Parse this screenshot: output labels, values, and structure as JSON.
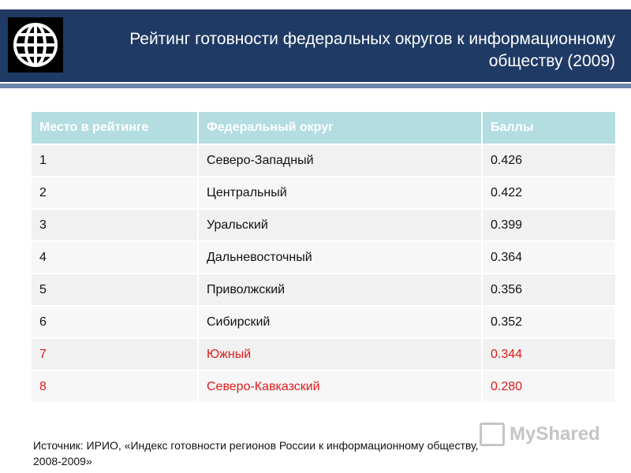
{
  "slide": {
    "title_line1": "Рейтинг готовности федеральных округов к информационному",
    "title_line2": "обществу (2009)",
    "logo_icon": "globe-icon",
    "header_color": "#1f3a64",
    "header_rule_color": "#6e86ad"
  },
  "table": {
    "header_color": "#b3dde0",
    "highlight_color": "#e01a1a",
    "columns": [
      "Место в рейтинге",
      "Федеральный округ",
      "Баллы"
    ],
    "rows": [
      {
        "rank": "1",
        "district": "Северо-Западный",
        "score": "0.426"
      },
      {
        "rank": "2",
        "district": "Центральный",
        "score": "0.422"
      },
      {
        "rank": "3",
        "district": "Уральский",
        "score": "0.399"
      },
      {
        "rank": "4",
        "district": "Дальневосточный",
        "score": "0.364"
      },
      {
        "rank": "5",
        "district": "Приволжский",
        "score": "0.356"
      },
      {
        "rank": "6",
        "district": "Сибирский",
        "score": "0.352"
      },
      {
        "rank": "7",
        "district": "Южный",
        "score": "0.344"
      },
      {
        "rank": "8",
        "district": "Северо-Кавказский",
        "score": "0.280"
      }
    ]
  },
  "source": {
    "line1": "Источник: ИРИО, «Индекс готовности регионов России к информационному обществу,",
    "line2": "2008-2009»"
  },
  "watermark": {
    "text": "MyShared",
    "icon": "presentation-icon"
  }
}
